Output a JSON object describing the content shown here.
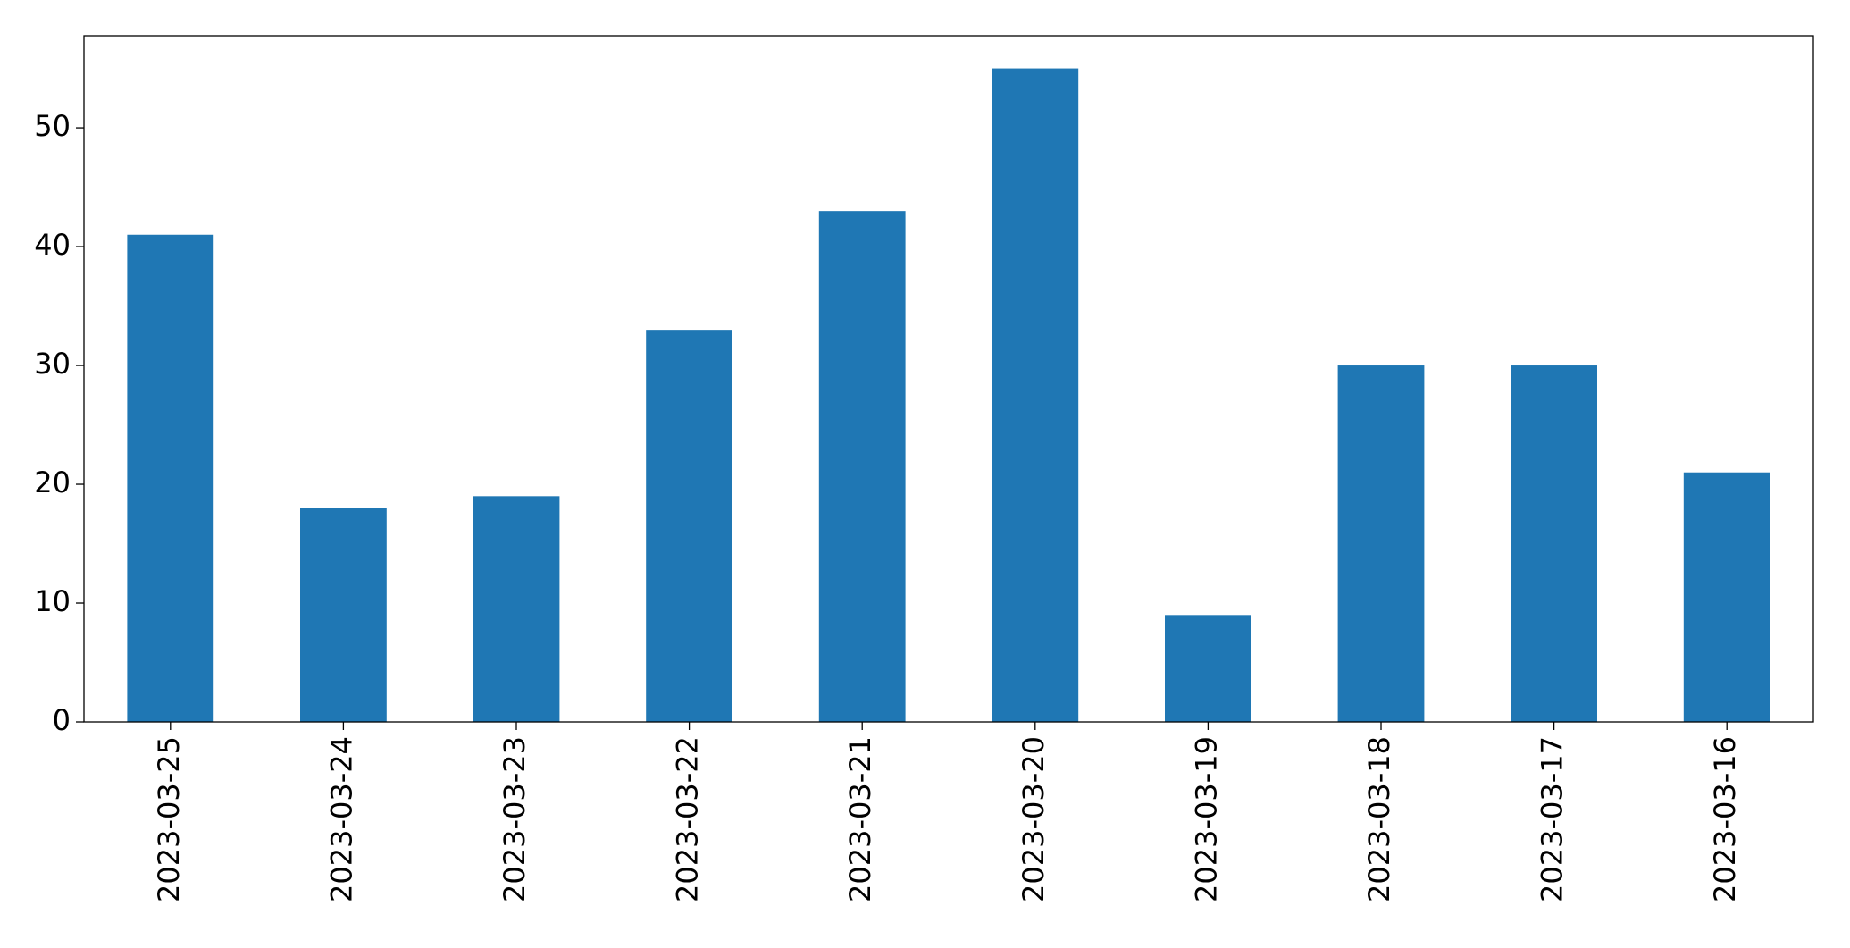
{
  "chart_data": {
    "type": "bar",
    "categories": [
      "2023-03-25",
      "2023-03-24",
      "2023-03-23",
      "2023-03-22",
      "2023-03-21",
      "2023-03-20",
      "2023-03-19",
      "2023-03-18",
      "2023-03-17",
      "2023-03-16"
    ],
    "values": [
      41,
      18,
      19,
      33,
      43,
      55,
      9,
      30,
      30,
      21
    ],
    "color": "#1f77b4",
    "ylim": [
      0,
      57.75
    ],
    "yticks": [
      0,
      10,
      20,
      30,
      40,
      50
    ],
    "grid": false
  }
}
